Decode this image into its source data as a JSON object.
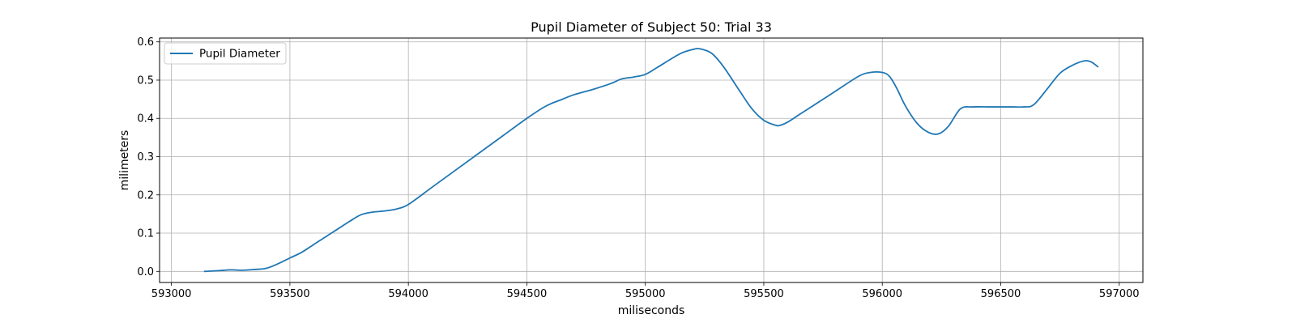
{
  "chart_data": {
    "type": "line",
    "title": "Pupil Diameter of Subject 50: Trial 33",
    "xlabel": "miliseconds",
    "ylabel": "milimeters",
    "xlim": [
      592950,
      597100
    ],
    "ylim": [
      -0.029,
      0.61
    ],
    "xticks": [
      593000,
      593500,
      594000,
      594500,
      595000,
      595500,
      596000,
      596500,
      597000
    ],
    "yticks": [
      0.0,
      0.1,
      0.2,
      0.3,
      0.4,
      0.5,
      0.6
    ],
    "ytick_labels": [
      "0.0",
      "0.1",
      "0.2",
      "0.3",
      "0.4",
      "0.5",
      "0.6"
    ],
    "grid": true,
    "legend_position": "top-left",
    "series": [
      {
        "name": "Pupil Diameter",
        "color": "#1f77b4",
        "x": [
          593140,
          593200,
          593250,
          593300,
          593350,
          593400,
          593450,
          593500,
          593550,
          593600,
          593650,
          593700,
          593750,
          593800,
          593850,
          593900,
          593950,
          594000,
          594100,
          594200,
          594300,
          594400,
          594500,
          594580,
          594650,
          594700,
          594780,
          594850,
          594900,
          594950,
          595000,
          595050,
          595100,
          595150,
          595200,
          595230,
          595280,
          595330,
          595400,
          595450,
          595500,
          595550,
          595570,
          595600,
          595650,
          595700,
          595800,
          595900,
          595950,
          596000,
          596030,
          596060,
          596100,
          596150,
          596200,
          596240,
          596280,
          596330,
          596380,
          596450,
          596500,
          596550,
          596600,
          596640,
          596700,
          596750,
          596800,
          596850,
          596880,
          596910
        ],
        "y": [
          0.0,
          0.002,
          0.004,
          0.003,
          0.005,
          0.008,
          0.02,
          0.035,
          0.05,
          0.07,
          0.09,
          0.11,
          0.13,
          0.148,
          0.155,
          0.158,
          0.163,
          0.175,
          0.22,
          0.265,
          0.31,
          0.355,
          0.4,
          0.432,
          0.45,
          0.462,
          0.476,
          0.49,
          0.503,
          0.508,
          0.515,
          0.533,
          0.552,
          0.57,
          0.58,
          0.582,
          0.57,
          0.535,
          0.47,
          0.425,
          0.395,
          0.382,
          0.382,
          0.39,
          0.41,
          0.43,
          0.47,
          0.51,
          0.52,
          0.52,
          0.51,
          0.48,
          0.43,
          0.385,
          0.362,
          0.36,
          0.38,
          0.425,
          0.43,
          0.43,
          0.43,
          0.43,
          0.43,
          0.436,
          0.48,
          0.518,
          0.538,
          0.55,
          0.548,
          0.535
        ]
      }
    ]
  }
}
